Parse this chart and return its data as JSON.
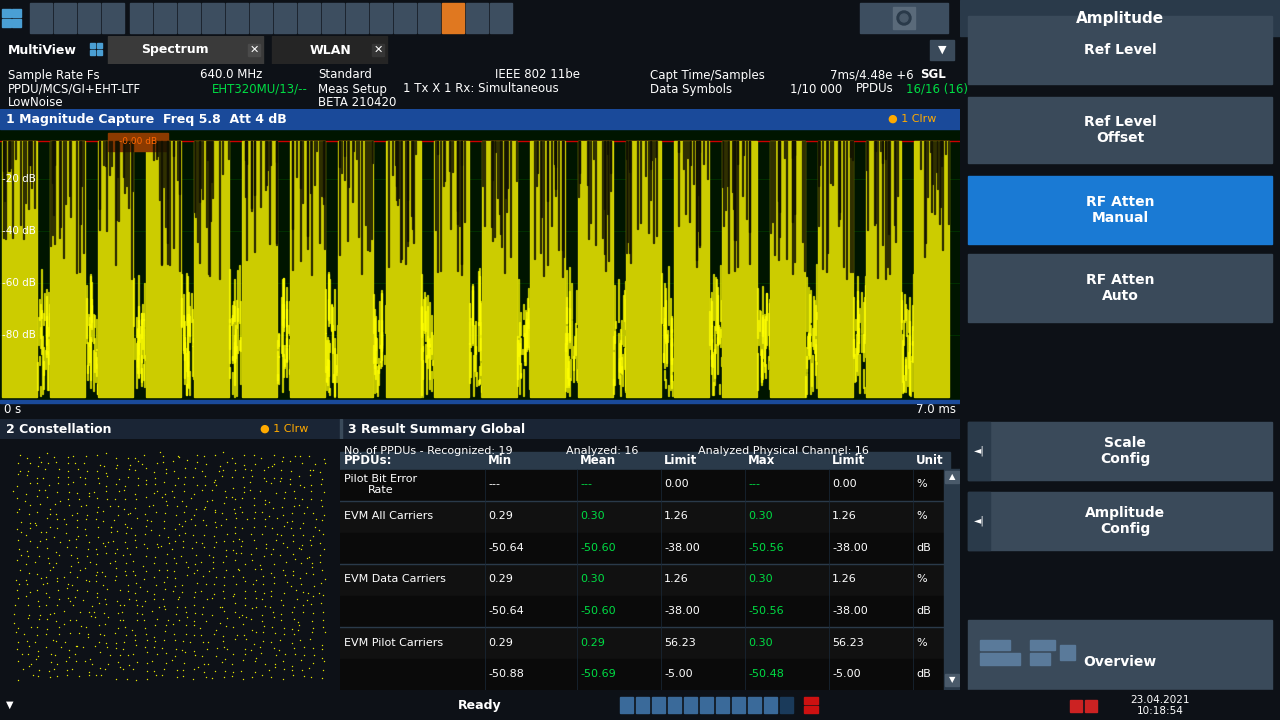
{
  "bg_color": "#1a1a2a",
  "toolbar_bg": "#2d3a4a",
  "main_bg": "#0d1117",
  "panel_header_blue": "#1a4a9a",
  "panel_header_dark": "#1a2535",
  "panel_bg": "#000000",
  "right_panel_bg": "#1e2a35",
  "right_btn_normal": "#3a4a5a",
  "right_btn_active_blue": "#1a7ad4",
  "right_btn_label_top": "#3a4a5a",
  "waveform_bg": "#001500",
  "waveform_yellow": "#ffff00",
  "waveform_dark_yellow": "#888800",
  "constellation_yellow": "#ffff00",
  "green_text": "#00dd44",
  "white_text": "#ffffff",
  "table_header_bg": "#2a3a4a",
  "table_row_bg1": "#0a0a0a",
  "table_row_bg2": "#111111",
  "table_divider": "#2a3a4a",
  "status_bar_bg": "#1a2535",
  "tab_spectrum_bg": "#3a3a3a",
  "tab_wlan_bg": "#252525",
  "info_bar_bg": "#0d1117",
  "header_info": {
    "sample_rate_label": "Sample Rate Fs",
    "sample_rate_val": "640.0 MHz",
    "standard_label": "Standard",
    "standard_val": "IEEE 802 11be",
    "capt_label": "Capt Time/Samples",
    "capt_val": "7ms/4.48e +6",
    "sgl_val": "SGL",
    "ppdu_label": "PPDU/MCS/GI+EHT-LTF",
    "ppdu_val": "EHT320MU/13/--",
    "meas_label": "Meas Setup",
    "meas_val": "1 Tx X 1 Rx: Simultaneous",
    "datasym_label": "Data Symbols",
    "datasym_val": "1/10 000",
    "ppdus_label": "PPDUs",
    "ppdus_val": "16/16 (16)",
    "lownoise": "LowNoise",
    "beta": "BETA 210420"
  },
  "panel1_title": "1 Magnitude Capture  Freq 5.8  Att 4 dB",
  "clrw": "1 Clrw",
  "panel2_title": "2 Constellation",
  "panel3_title": "3 Result Summary Global",
  "amplitude_label": "Amplitude",
  "right_buttons": [
    {
      "label": "Ref Level",
      "active": false
    },
    {
      "label": "Ref Level\nOffset",
      "active": false
    },
    {
      "label": "RF Atten\nManual",
      "active": true
    },
    {
      "label": "RF Atten\nAuto",
      "active": false
    },
    {
      "label": "Scale\nConfig",
      "active": false,
      "has_arrow": true
    },
    {
      "label": "Amplitude\nConfig",
      "active": false,
      "has_arrow": true
    },
    {
      "label": "Overview",
      "active": false,
      "has_icon": true
    }
  ],
  "y_labels": [
    "-20 dB",
    "-40 dB",
    "-60 dB",
    "-80 dB"
  ],
  "x_left": "0 s",
  "x_right": "7.0 ms",
  "table_summary": "No. of PPDUs - Recognized: 19",
  "table_analyzed": "Analyzed: 16",
  "table_analyzed_phys": "Analyzed Physical Channel: 16",
  "table_cols": [
    "PPDUs:",
    "Min",
    "Mean",
    "Limit",
    "Max",
    "Limit",
    "Unit"
  ],
  "table_rows": [
    {
      "label": "Pilot Bit Error\nRate",
      "min": "---",
      "mean": "---",
      "lim1": "0.00",
      "max": "---",
      "lim2": "0.00",
      "unit": "%",
      "mean_green": true,
      "max_green": true
    },
    {
      "label": "EVM All Carriers",
      "min": "0.29",
      "mean": "0.30",
      "lim1": "1.26",
      "max": "0.30",
      "lim2": "1.26",
      "unit": "%",
      "mean_green": true,
      "max_green": true
    },
    {
      "label": "",
      "min": "-50.64",
      "mean": "-50.60",
      "lim1": "-38.00",
      "max": "-50.56",
      "lim2": "-38.00",
      "unit": "dB",
      "mean_green": true,
      "max_green": true
    },
    {
      "label": "EVM Data Carriers",
      "min": "0.29",
      "mean": "0.30",
      "lim1": "1.26",
      "max": "0.30",
      "lim2": "1.26",
      "unit": "%",
      "mean_green": true,
      "max_green": true
    },
    {
      "label": "",
      "min": "-50.64",
      "mean": "-50.60",
      "lim1": "-38.00",
      "max": "-50.56",
      "lim2": "-38.00",
      "unit": "dB",
      "mean_green": true,
      "max_green": true
    },
    {
      "label": "EVM Pilot Carriers",
      "min": "0.29",
      "mean": "0.29",
      "lim1": "56.23",
      "max": "0.30",
      "lim2": "56.23",
      "unit": "%",
      "mean_green": true,
      "max_green": true
    },
    {
      "label": "",
      "min": "-50.88",
      "mean": "-50.69",
      "lim1": "-5.00",
      "max": "-50.48",
      "lim2": "-5.00",
      "unit": "dB",
      "mean_green": true,
      "max_green": true
    }
  ],
  "status_ready": "Ready",
  "status_time1": "23.04.2021",
  "status_time2": "10:18:54"
}
